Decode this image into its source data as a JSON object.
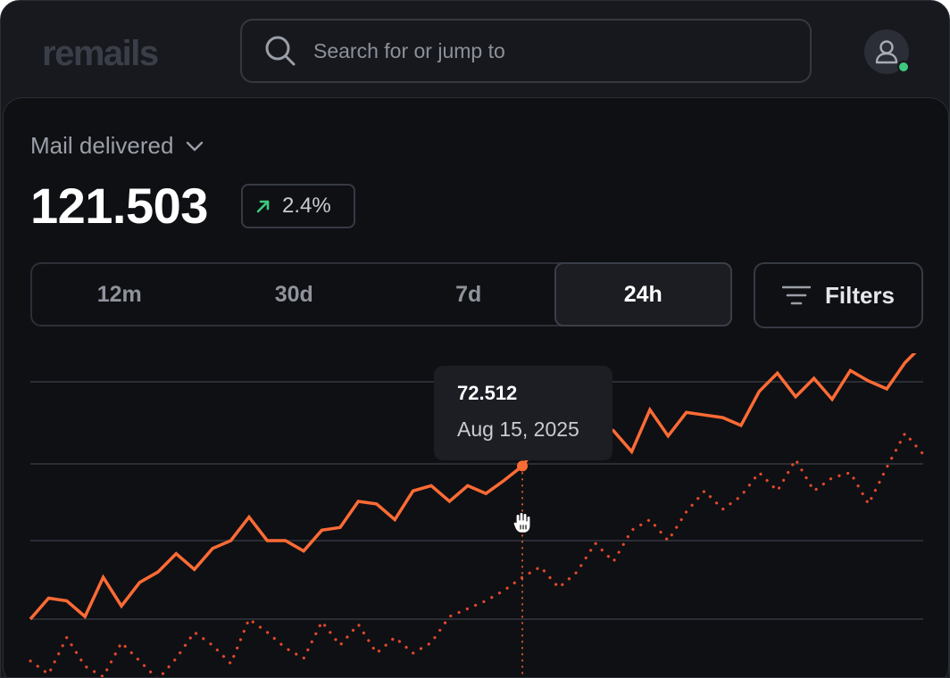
{
  "app": {
    "logo": "remails"
  },
  "search": {
    "placeholder": "Search for or jump to",
    "icon": "search-icon"
  },
  "user": {
    "avatar_icon": "user-icon",
    "status": "online",
    "status_color": "#3dc97e"
  },
  "metric": {
    "label": "Mail delivered",
    "value": "121.503",
    "change": "2.4%",
    "change_direction": "up",
    "change_color": "#3dc97e"
  },
  "range_tabs": [
    {
      "label": "12m",
      "active": false
    },
    {
      "label": "30d",
      "active": false
    },
    {
      "label": "7d",
      "active": false
    },
    {
      "label": "24h",
      "active": true
    }
  ],
  "filters_label": "Filters",
  "tooltip": {
    "value": "72.512",
    "date": "Aug 15, 2025"
  },
  "chart_data": {
    "type": "line",
    "grid": "horizontal",
    "legend": "none",
    "series_colors": [
      "#ff6b35",
      "#e5482b"
    ],
    "series": [
      {
        "style": "solid",
        "values": [
          14,
          22,
          21,
          15,
          30,
          19,
          28,
          32,
          39,
          33,
          41,
          44,
          53,
          44,
          44,
          40,
          48,
          49,
          59,
          58,
          52,
          63,
          65,
          59,
          65,
          62,
          67,
          72.512,
          82,
          76,
          82,
          89,
          86,
          78,
          94,
          84,
          93,
          92,
          91,
          88,
          101,
          108,
          99,
          106,
          98,
          109,
          105,
          102,
          112,
          119
        ]
      },
      {
        "style": "dotted",
        "values": [
          -2,
          -7,
          7,
          -4,
          -8,
          5,
          -2,
          -9,
          -1,
          9,
          4,
          -3,
          14,
          9,
          3,
          -1,
          13,
          4,
          12,
          1,
          7,
          1,
          5,
          15,
          18,
          21,
          25,
          30,
          34,
          26,
          32,
          43,
          36,
          48,
          52,
          44,
          55,
          63,
          56,
          61,
          70,
          63,
          75,
          63,
          68,
          70,
          58,
          72,
          85,
          77
        ]
      }
    ]
  }
}
